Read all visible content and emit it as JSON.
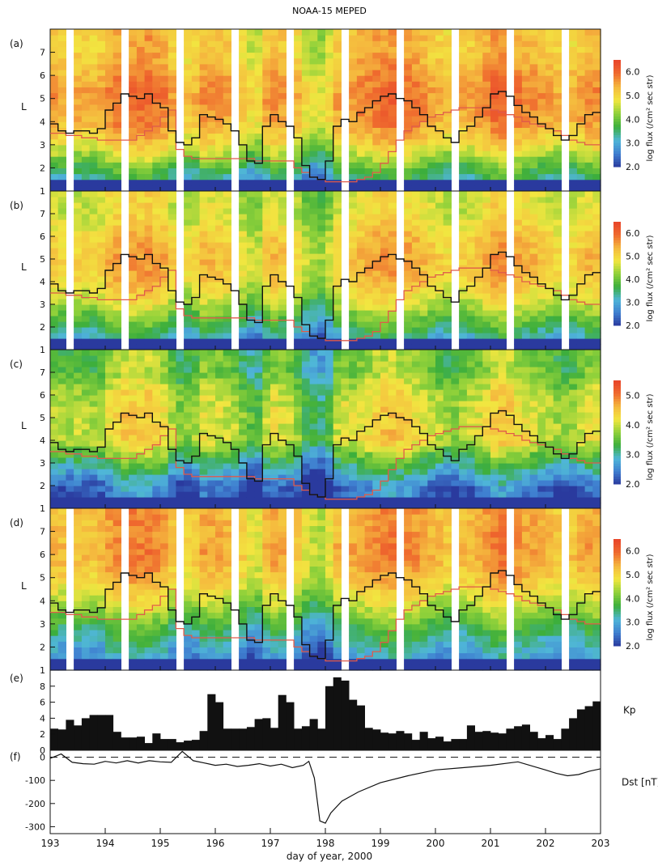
{
  "title": "NOAA-15  MEPED",
  "xlabel": "day of year, 2000",
  "colors": {
    "flux_scale": [
      "#2a3a9e",
      "#3f7fd0",
      "#4fb6d8",
      "#3cae3c",
      "#8fd13a",
      "#f2e640",
      "#f5b83e",
      "#ef6a2e",
      "#e8442a"
    ],
    "kp_line": "#111111",
    "lpp_line": "#e05a4a",
    "kp_bar": "#111111"
  },
  "chart_data": [
    {
      "panel": "(a)",
      "type": "heatmap",
      "ylabel": "L",
      "ylim": [
        1,
        8
      ],
      "yticks": [
        1,
        2,
        3,
        4,
        5,
        6,
        7
      ],
      "colorbar_label": "log flux (/cm² sec str)",
      "colorbar_ticks": [
        "2.0",
        "3.0",
        "4.0",
        "5.0",
        "6.0"
      ],
      "colorbar_range": [
        2.0,
        6.5
      ],
      "flux_profile": [
        2.6,
        3.6,
        4.7,
        5.3,
        5.5,
        5.3,
        5.0
      ],
      "coverage": "gaps",
      "kp_scaled": [
        3.9,
        3.6,
        3.5,
        3.6,
        3.6,
        3.5,
        3.7,
        4.5,
        4.8,
        5.2,
        5.1,
        5.0,
        5.2,
        4.8,
        4.6,
        3.6,
        3.1,
        3.0,
        3.3,
        4.3,
        4.2,
        4.1,
        3.9,
        3.6,
        3.0,
        2.3,
        2.2,
        3.8,
        4.3,
        4.0,
        3.8,
        3.3,
        2.1,
        1.6,
        1.5,
        2.3,
        3.8,
        4.1,
        4.0,
        4.4,
        4.6,
        4.9,
        5.1,
        5.2,
        5.0,
        4.9,
        4.6,
        4.3,
        3.8,
        3.6,
        3.3,
        3.1,
        3.6,
        3.8,
        4.2,
        4.6,
        5.2,
        5.3,
        5.1,
        4.7,
        4.4,
        4.2,
        3.9,
        3.7,
        3.4,
        3.2,
        3.4,
        3.9,
        4.3,
        4.4
      ],
      "lpp": [
        3.5,
        3.5,
        3.4,
        3.4,
        3.3,
        3.3,
        3.2,
        3.2,
        3.2,
        3.2,
        3.2,
        3.4,
        3.6,
        3.8,
        4.2,
        4.5,
        2.8,
        2.5,
        2.4,
        2.4,
        2.4,
        2.4,
        2.4,
        2.4,
        2.4,
        2.4,
        2.3,
        2.3,
        2.3,
        2.3,
        2.3,
        2.0,
        1.8,
        1.6,
        1.5,
        1.4,
        1.4,
        1.4,
        1.4,
        1.5,
        1.6,
        1.8,
        2.2,
        2.7,
        3.2,
        3.6,
        3.8,
        4.0,
        4.2,
        4.3,
        4.4,
        4.5,
        4.6,
        4.6,
        4.6,
        4.6,
        4.5,
        4.4,
        4.3,
        4.2,
        4.0,
        3.9,
        3.8,
        3.7,
        3.6,
        3.4,
        3.2,
        3.1,
        3.0,
        3.0
      ]
    },
    {
      "panel": "(b)",
      "type": "heatmap",
      "ylabel": "L",
      "ylim": [
        1,
        8
      ],
      "yticks": [
        1,
        2,
        3,
        4,
        5,
        6,
        7
      ],
      "colorbar_label": "log flux (/cm² sec str)",
      "colorbar_ticks": [
        "2.0",
        "3.0",
        "4.0",
        "5.0",
        "6.0"
      ],
      "colorbar_range": [
        2.0,
        6.5
      ],
      "flux_profile": [
        2.5,
        3.4,
        4.3,
        4.9,
        5.1,
        4.9,
        4.5
      ],
      "coverage": "gaps",
      "kp_scaled": [
        3.9,
        3.6,
        3.5,
        3.6,
        3.6,
        3.5,
        3.7,
        4.5,
        4.8,
        5.2,
        5.1,
        5.0,
        5.2,
        4.8,
        4.6,
        3.6,
        3.1,
        3.0,
        3.3,
        4.3,
        4.2,
        4.1,
        3.9,
        3.6,
        3.0,
        2.3,
        2.2,
        3.8,
        4.3,
        4.0,
        3.8,
        3.3,
        2.1,
        1.6,
        1.5,
        2.3,
        3.8,
        4.1,
        4.0,
        4.4,
        4.6,
        4.9,
        5.1,
        5.2,
        5.0,
        4.9,
        4.6,
        4.3,
        3.8,
        3.6,
        3.3,
        3.1,
        3.6,
        3.8,
        4.2,
        4.6,
        5.2,
        5.3,
        5.1,
        4.7,
        4.4,
        4.2,
        3.9,
        3.7,
        3.4,
        3.2,
        3.4,
        3.9,
        4.3,
        4.4
      ],
      "lpp": [
        3.5,
        3.5,
        3.4,
        3.4,
        3.3,
        3.3,
        3.2,
        3.2,
        3.2,
        3.2,
        3.2,
        3.4,
        3.6,
        3.8,
        4.2,
        4.5,
        2.8,
        2.5,
        2.4,
        2.4,
        2.4,
        2.4,
        2.4,
        2.4,
        2.4,
        2.4,
        2.3,
        2.3,
        2.3,
        2.3,
        2.3,
        2.0,
        1.8,
        1.6,
        1.5,
        1.4,
        1.4,
        1.4,
        1.4,
        1.5,
        1.6,
        1.8,
        2.2,
        2.7,
        3.2,
        3.6,
        3.8,
        4.0,
        4.2,
        4.3,
        4.4,
        4.5,
        4.6,
        4.6,
        4.6,
        4.6,
        4.5,
        4.4,
        4.3,
        4.2,
        4.0,
        3.9,
        3.8,
        3.7,
        3.6,
        3.4,
        3.2,
        3.1,
        3.0,
        3.0
      ]
    },
    {
      "panel": "(c)",
      "type": "heatmap",
      "ylabel": "L",
      "ylim": [
        1,
        8
      ],
      "yticks": [
        1,
        2,
        3,
        4,
        5,
        6,
        7
      ],
      "colorbar_label": "log flux (/cm² sec str)",
      "colorbar_ticks": [
        "2.0",
        "3.0",
        "4.0",
        "5.0"
      ],
      "colorbar_range": [
        2.0,
        5.5
      ],
      "flux_profile": [
        2.0,
        2.2,
        3.0,
        3.9,
        3.9,
        3.8,
        3.4
      ],
      "coverage": "continuous",
      "kp_scaled": [
        3.9,
        3.6,
        3.5,
        3.6,
        3.6,
        3.5,
        3.7,
        4.5,
        4.8,
        5.2,
        5.1,
        5.0,
        5.2,
        4.8,
        4.6,
        3.6,
        3.1,
        3.0,
        3.3,
        4.3,
        4.2,
        4.1,
        3.9,
        3.6,
        3.0,
        2.3,
        2.2,
        3.8,
        4.3,
        4.0,
        3.8,
        3.3,
        2.1,
        1.6,
        1.5,
        2.3,
        3.8,
        4.1,
        4.0,
        4.4,
        4.6,
        4.9,
        5.1,
        5.2,
        5.0,
        4.9,
        4.6,
        4.3,
        3.8,
        3.6,
        3.3,
        3.1,
        3.6,
        3.8,
        4.2,
        4.6,
        5.2,
        5.3,
        5.1,
        4.7,
        4.4,
        4.2,
        3.9,
        3.7,
        3.4,
        3.2,
        3.4,
        3.9,
        4.3,
        4.4
      ],
      "lpp": [
        3.5,
        3.5,
        3.4,
        3.4,
        3.3,
        3.3,
        3.2,
        3.2,
        3.2,
        3.2,
        3.2,
        3.4,
        3.6,
        3.8,
        4.2,
        4.5,
        2.8,
        2.5,
        2.4,
        2.4,
        2.4,
        2.4,
        2.4,
        2.4,
        2.4,
        2.4,
        2.3,
        2.3,
        2.3,
        2.3,
        2.3,
        2.0,
        1.8,
        1.6,
        1.5,
        1.4,
        1.4,
        1.4,
        1.4,
        1.5,
        1.6,
        1.8,
        2.2,
        2.7,
        3.2,
        3.6,
        3.8,
        4.0,
        4.2,
        4.3,
        4.4,
        4.5,
        4.6,
        4.6,
        4.6,
        4.6,
        4.5,
        4.4,
        4.3,
        4.2,
        4.0,
        3.9,
        3.8,
        3.7,
        3.6,
        3.4,
        3.2,
        3.1,
        3.0,
        3.0
      ]
    },
    {
      "panel": "(d)",
      "type": "heatmap",
      "ylabel": "L",
      "ylim": [
        1,
        8
      ],
      "yticks": [
        1,
        2,
        3,
        4,
        5,
        6,
        7
      ],
      "colorbar_label": "log flux (/cm² sec str)",
      "colorbar_ticks": [
        "2.0",
        "3.0",
        "4.0",
        "5.0",
        "6.0"
      ],
      "colorbar_range": [
        2.0,
        6.5
      ],
      "flux_profile": [
        2.4,
        2.9,
        3.6,
        4.4,
        5.0,
        5.3,
        5.2
      ],
      "coverage": "gaps",
      "kp_scaled": [
        3.9,
        3.6,
        3.5,
        3.6,
        3.6,
        3.5,
        3.7,
        4.5,
        4.8,
        5.2,
        5.1,
        5.0,
        5.2,
        4.8,
        4.6,
        3.6,
        3.1,
        3.0,
        3.3,
        4.3,
        4.2,
        4.1,
        3.9,
        3.6,
        3.0,
        2.3,
        2.2,
        3.8,
        4.3,
        4.0,
        3.8,
        3.3,
        2.1,
        1.6,
        1.5,
        2.3,
        3.8,
        4.1,
        4.0,
        4.4,
        4.6,
        4.9,
        5.1,
        5.2,
        5.0,
        4.9,
        4.6,
        4.3,
        3.8,
        3.6,
        3.3,
        3.1,
        3.6,
        3.8,
        4.2,
        4.6,
        5.2,
        5.3,
        5.1,
        4.7,
        4.4,
        4.2,
        3.9,
        3.7,
        3.4,
        3.2,
        3.4,
        3.9,
        4.3,
        4.4
      ],
      "lpp": [
        3.5,
        3.5,
        3.4,
        3.4,
        3.3,
        3.3,
        3.2,
        3.2,
        3.2,
        3.2,
        3.2,
        3.4,
        3.6,
        3.8,
        4.2,
        4.5,
        2.8,
        2.5,
        2.4,
        2.4,
        2.4,
        2.4,
        2.4,
        2.4,
        2.4,
        2.4,
        2.3,
        2.3,
        2.3,
        2.3,
        2.3,
        2.0,
        1.8,
        1.6,
        1.5,
        1.4,
        1.4,
        1.4,
        1.4,
        1.5,
        1.6,
        1.8,
        2.2,
        2.7,
        3.2,
        3.6,
        3.8,
        4.0,
        4.2,
        4.3,
        4.4,
        4.5,
        4.6,
        4.6,
        4.6,
        4.6,
        4.5,
        4.4,
        4.3,
        4.2,
        4.0,
        3.9,
        3.8,
        3.7,
        3.6,
        3.4,
        3.2,
        3.1,
        3.0,
        3.0
      ]
    },
    {
      "panel": "(e)",
      "type": "bar",
      "ylabel": "Kp",
      "ylim": [
        0,
        10
      ],
      "yticks": [
        0,
        2,
        4,
        6,
        8
      ],
      "x_range": [
        193,
        203
      ],
      "values": [
        2.7,
        2.6,
        3.8,
        3.1,
        4.0,
        4.4,
        4.4,
        4.4,
        2.3,
        1.6,
        1.6,
        1.7,
        0.9,
        2.1,
        1.4,
        1.4,
        1.0,
        1.2,
        1.3,
        2.4,
        7.0,
        6.0,
        2.7,
        2.7,
        2.7,
        2.9,
        3.9,
        4.0,
        2.8,
        6.9,
        6.0,
        2.7,
        3.0,
        3.9,
        2.7,
        8.0,
        9.1,
        8.7,
        6.3,
        5.6,
        2.8,
        2.6,
        2.2,
        2.1,
        2.4,
        2.1,
        1.3,
        2.3,
        1.5,
        1.7,
        1.1,
        1.4,
        1.4,
        3.1,
        2.3,
        2.4,
        2.2,
        2.1,
        2.7,
        3.0,
        3.2,
        2.3,
        1.5,
        1.9,
        1.4,
        2.7,
        4.0,
        5.1,
        5.5,
        6.1
      ]
    },
    {
      "panel": "(f)",
      "type": "line",
      "ylabel": "Dst [nT]",
      "ylim": [
        -330,
        30
      ],
      "yticks": [
        0,
        -100,
        -200,
        -300
      ],
      "x_range": [
        193,
        203
      ],
      "zero_line": "dashed",
      "x": [
        193.0,
        193.2,
        193.4,
        193.6,
        193.8,
        194.0,
        194.2,
        194.4,
        194.6,
        194.8,
        195.0,
        195.2,
        195.4,
        195.6,
        195.8,
        196.0,
        196.2,
        196.4,
        196.6,
        196.8,
        197.0,
        197.2,
        197.4,
        197.6,
        197.7,
        197.8,
        197.9,
        198.0,
        198.1,
        198.3,
        198.6,
        199.0,
        199.5,
        200.0,
        200.5,
        201.0,
        201.5,
        202.0,
        202.2,
        202.4,
        202.6,
        202.8,
        203.0
      ],
      "values": [
        -5,
        14,
        -22,
        -28,
        -30,
        -18,
        -25,
        -15,
        -25,
        -15,
        -20,
        -22,
        25,
        -15,
        -25,
        -35,
        -30,
        -40,
        -35,
        -28,
        -38,
        -30,
        -45,
        -35,
        -18,
        -90,
        -275,
        -285,
        -240,
        -190,
        -150,
        -110,
        -80,
        -55,
        -45,
        -35,
        -20,
        -55,
        -70,
        -80,
        -75,
        -60,
        -50
      ]
    }
  ]
}
